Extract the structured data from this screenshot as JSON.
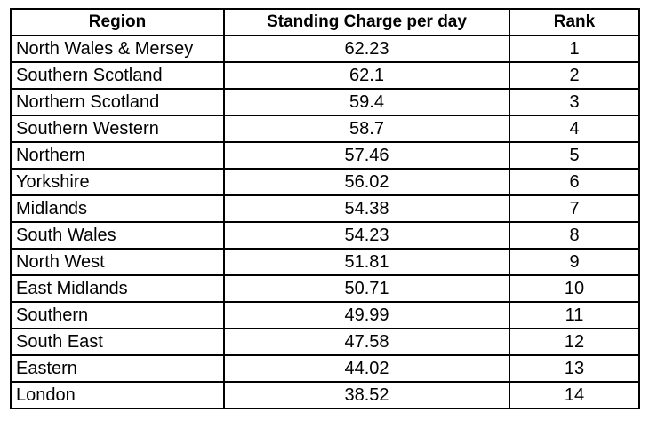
{
  "table": {
    "headers": [
      "Region",
      "Standing Charge per day",
      "Rank"
    ],
    "rows": [
      {
        "region": "North Wales & Mersey",
        "charge": "62.23",
        "rank": "1"
      },
      {
        "region": "Southern Scotland",
        "charge": "62.1",
        "rank": "2"
      },
      {
        "region": "Northern Scotland",
        "charge": "59.4",
        "rank": "3"
      },
      {
        "region": "Southern Western",
        "charge": "58.7",
        "rank": "4"
      },
      {
        "region": "Northern",
        "charge": "57.46",
        "rank": "5"
      },
      {
        "region": "Yorkshire",
        "charge": "56.02",
        "rank": "6"
      },
      {
        "region": "Midlands",
        "charge": "54.38",
        "rank": "7"
      },
      {
        "region": "South Wales",
        "charge": "54.23",
        "rank": "8"
      },
      {
        "region": "North West",
        "charge": "51.81",
        "rank": "9"
      },
      {
        "region": "East Midlands",
        "charge": "50.71",
        "rank": "10"
      },
      {
        "region": "Southern",
        "charge": "49.99",
        "rank": "11"
      },
      {
        "region": "South East",
        "charge": "47.58",
        "rank": "12"
      },
      {
        "region": "Eastern",
        "charge": "44.02",
        "rank": "13"
      },
      {
        "region": "London",
        "charge": "38.52",
        "rank": "14"
      }
    ]
  }
}
